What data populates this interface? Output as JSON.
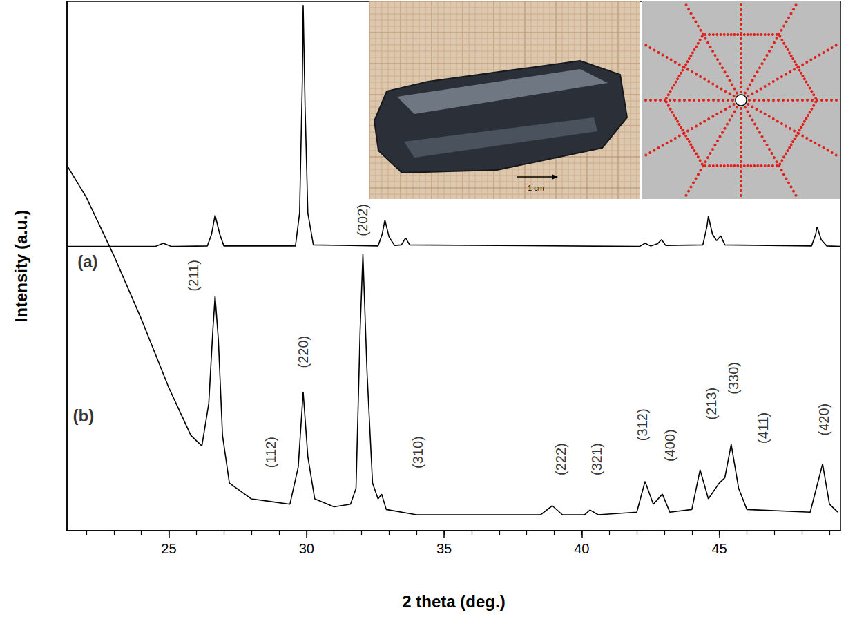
{
  "chart_data": {
    "type": "line",
    "xlabel": "2 theta (deg.)",
    "ylabel": "Intensity (a.u.)",
    "xlim": [
      21.3,
      49.4
    ],
    "xticks": [
      25,
      30,
      35,
      40,
      45
    ],
    "ylim": [
      0,
      100
    ],
    "yticks": [],
    "tick_labels": "x",
    "grid": false,
    "series": [
      {
        "name": "(a)",
        "color": "#000000",
        "name_x": 22.05,
        "name_y": 50.9,
        "x": [
          21.3,
          24.5,
          24.8,
          25.1,
          26.4,
          26.55,
          26.68,
          26.85,
          27.0,
          29.6,
          29.75,
          29.85,
          29.88,
          29.95,
          30.05,
          30.25,
          32.6,
          32.75,
          32.85,
          33.0,
          33.2,
          33.45,
          33.6,
          33.75,
          42.1,
          42.3,
          42.5,
          42.75,
          42.9,
          43.05,
          44.4,
          44.55,
          44.6,
          44.75,
          44.9,
          45.05,
          45.2,
          48.35,
          48.5,
          48.55,
          48.7,
          48.9,
          49.4
        ],
        "values": [
          53.7,
          53.7,
          54.3,
          53.7,
          53.8,
          56.0,
          59.6,
          56.0,
          53.8,
          53.8,
          60.0,
          85.0,
          99.3,
          80.0,
          60.0,
          54.0,
          53.8,
          56.0,
          58.7,
          55.5,
          53.9,
          54.0,
          55.3,
          54.0,
          53.7,
          54.3,
          53.8,
          54.2,
          55.0,
          53.9,
          54.0,
          57.5,
          59.4,
          56.0,
          54.8,
          55.7,
          54.0,
          53.8,
          56.0,
          57.4,
          55.0,
          53.8,
          53.7
        ]
      },
      {
        "name": "(b)",
        "color": "#000000",
        "name_x": 21.9,
        "name_y": 21.8,
        "x": [
          21.3,
          22.0,
          23.0,
          24.0,
          25.0,
          25.8,
          26.2,
          26.45,
          26.6,
          26.68,
          26.8,
          26.95,
          27.2,
          28.0,
          28.7,
          29.4,
          29.7,
          29.88,
          30.05,
          30.3,
          31.0,
          31.6,
          31.8,
          31.95,
          32.05,
          32.2,
          32.4,
          32.6,
          32.73,
          32.9,
          34.0,
          36.0,
          38.5,
          38.93,
          39.3,
          40.1,
          40.3,
          40.6,
          42.0,
          42.3,
          42.6,
          42.93,
          43.2,
          44.0,
          44.3,
          44.6,
          44.98,
          45.2,
          45.43,
          45.7,
          46.0,
          48.3,
          48.75,
          49.0,
          49.3
        ],
        "values": [
          69.0,
          63.0,
          52.0,
          40.0,
          27.0,
          18.0,
          16.0,
          24.0,
          38.0,
          44.3,
          36.0,
          18.0,
          9.0,
          6.0,
          5.5,
          5.0,
          12.0,
          26.2,
          14.0,
          6.0,
          4.5,
          5.0,
          8.0,
          38.0,
          52.2,
          30.0,
          9.0,
          6.0,
          6.9,
          4.0,
          3.0,
          3.0,
          3.0,
          4.7,
          3.0,
          3.0,
          3.9,
          3.0,
          3.5,
          9.3,
          5.0,
          6.9,
          3.5,
          4.0,
          11.5,
          6.0,
          8.9,
          10.0,
          16.3,
          8.0,
          4.0,
          3.5,
          12.6,
          5.0,
          3.5
        ]
      }
    ],
    "annotations": [
      {
        "text": "(211)",
        "x": 25.88,
        "y": 48.2
      },
      {
        "text": "(112)",
        "x": 28.7,
        "y": 14.8
      },
      {
        "text": "(220)",
        "x": 29.88,
        "y": 33.8
      },
      {
        "text": "(202)",
        "x": 32.05,
        "y": 58.7
      },
      {
        "text": "(310)",
        "x": 34.05,
        "y": 14.8
      },
      {
        "text": "(222)",
        "x": 39.25,
        "y": 13.5
      },
      {
        "text": "(321)",
        "x": 40.55,
        "y": 13.5
      },
      {
        "text": "(312)",
        "x": 42.2,
        "y": 20.0
      },
      {
        "text": "(400)",
        "x": 43.2,
        "y": 16.1
      },
      {
        "text": "(213)",
        "x": 44.7,
        "y": 24.0
      },
      {
        "text": "(330)",
        "x": 45.5,
        "y": 28.8
      },
      {
        "text": "(411)",
        "x": 46.6,
        "y": 19.4
      },
      {
        "text": "(420)",
        "x": 48.8,
        "y": 21.0
      }
    ],
    "inset": {
      "scale_bar": "1 cm"
    }
  }
}
